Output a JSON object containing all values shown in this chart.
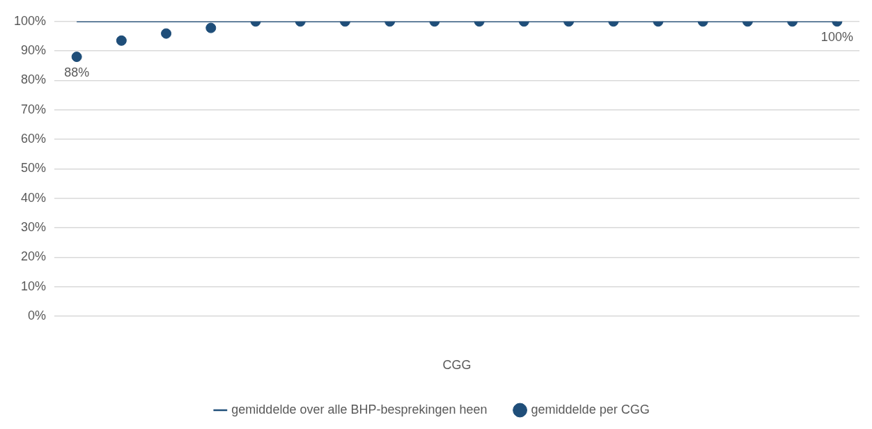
{
  "chart_data": {
    "type": "scatter",
    "xlabel": "CGG",
    "categories": [
      null,
      null,
      null,
      null,
      null,
      null,
      null,
      null,
      null,
      null,
      null,
      null,
      null,
      null,
      null,
      null,
      null,
      null
    ],
    "series": [
      {
        "name": "gemiddelde over alle BHP-besprekingen heen",
        "type": "line",
        "marker": "none",
        "color": "#1f4e79",
        "values": [
          100,
          100,
          100,
          100,
          100,
          100,
          100,
          100,
          100,
          100,
          100,
          100,
          100,
          100,
          100,
          100,
          100,
          100
        ]
      },
      {
        "name": "gemiddelde per CGG",
        "marker": "circle",
        "color": "#1f4e79",
        "values": [
          88,
          93.5,
          95.9,
          97.8,
          100,
          100,
          100,
          100,
          100,
          100,
          100,
          100,
          100,
          100,
          100,
          100,
          100,
          100
        ],
        "value_labels": [
          "88%",
          null,
          null,
          null,
          null,
          null,
          null,
          null,
          null,
          null,
          null,
          null,
          null,
          null,
          null,
          null,
          null,
          "100%"
        ]
      }
    ],
    "ylim": [
      0,
      100
    ],
    "yticks": [
      {
        "value": 0,
        "label": "0%"
      },
      {
        "value": 10,
        "label": "10%"
      },
      {
        "value": 20,
        "label": "20%"
      },
      {
        "value": 30,
        "label": "30%"
      },
      {
        "value": 40,
        "label": "40%"
      },
      {
        "value": 50,
        "label": "50%"
      },
      {
        "value": 60,
        "label": "60%"
      },
      {
        "value": 70,
        "label": "70%"
      },
      {
        "value": 80,
        "label": "80%"
      },
      {
        "value": 90,
        "label": "90%"
      },
      {
        "value": 100,
        "label": "100%"
      }
    ],
    "grid": "y",
    "legend": "bottom",
    "line_style": "solid"
  }
}
